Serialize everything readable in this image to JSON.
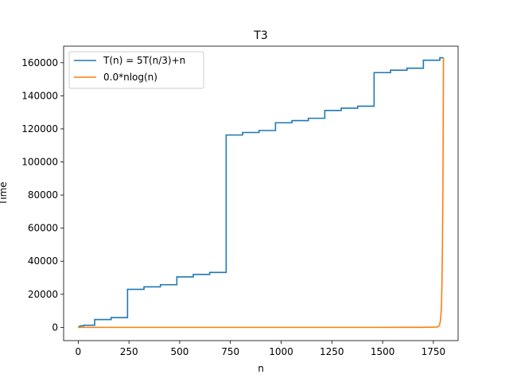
{
  "chart_data": {
    "type": "line",
    "title": "T3",
    "xlabel": "n",
    "ylabel": "Time",
    "xlim": [
      -72,
      1872
    ],
    "ylim": [
      -8000,
      170000
    ],
    "xticks": [
      0,
      250,
      500,
      750,
      1000,
      1250,
      1500,
      1750
    ],
    "yticks": [
      0,
      20000,
      40000,
      60000,
      80000,
      100000,
      120000,
      140000,
      160000
    ],
    "grid": false,
    "legend_position": "top-left",
    "series": [
      {
        "name": "T(n) = 5T(n/3)+n",
        "color": "#1f77b4",
        "step": true,
        "x": [
          0,
          3,
          9,
          27,
          81,
          162,
          243,
          324,
          405,
          486,
          567,
          648,
          729,
          810,
          891,
          972,
          1053,
          1134,
          1215,
          1296,
          1377,
          1458,
          1539,
          1620,
          1701,
          1782,
          1800
        ],
        "y": [
          0,
          400,
          900,
          1300,
          4700,
          5900,
          23000,
          24500,
          25800,
          30500,
          32000,
          33200,
          116300,
          117800,
          119000,
          123700,
          125000,
          126400,
          131100,
          132500,
          133700,
          154000,
          155500,
          156700,
          161500,
          163000,
          163000
        ]
      },
      {
        "name": "0.0*nlog(n)",
        "color": "#ff7f0e",
        "step": false,
        "x": [
          0,
          500,
          1000,
          1500,
          1700,
          1770,
          1780,
          1785,
          1790,
          1793,
          1795,
          1797,
          1798,
          1799,
          1800
        ],
        "y": [
          0,
          0,
          0,
          0,
          50,
          200,
          1200,
          4000,
          12000,
          30000,
          50000,
          80000,
          105000,
          135000,
          163000
        ]
      }
    ]
  }
}
